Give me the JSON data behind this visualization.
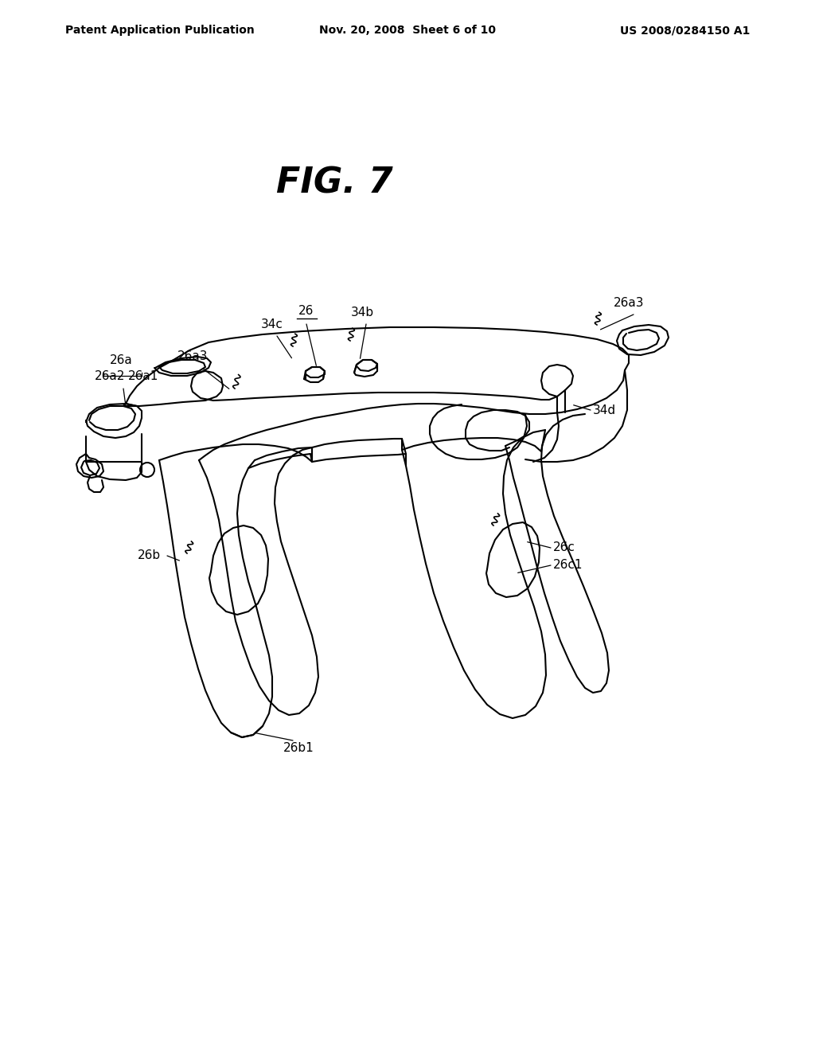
{
  "header_left": "Patent Application Publication",
  "header_center": "Nov. 20, 2008  Sheet 6 of 10",
  "header_right": "US 2008/0284150 A1",
  "fig_title": "FIG. 7",
  "bg_color": "#ffffff",
  "line_color": "#000000",
  "label_fontsize": 11,
  "header_fontsize": 10,
  "title_fontsize": 32
}
